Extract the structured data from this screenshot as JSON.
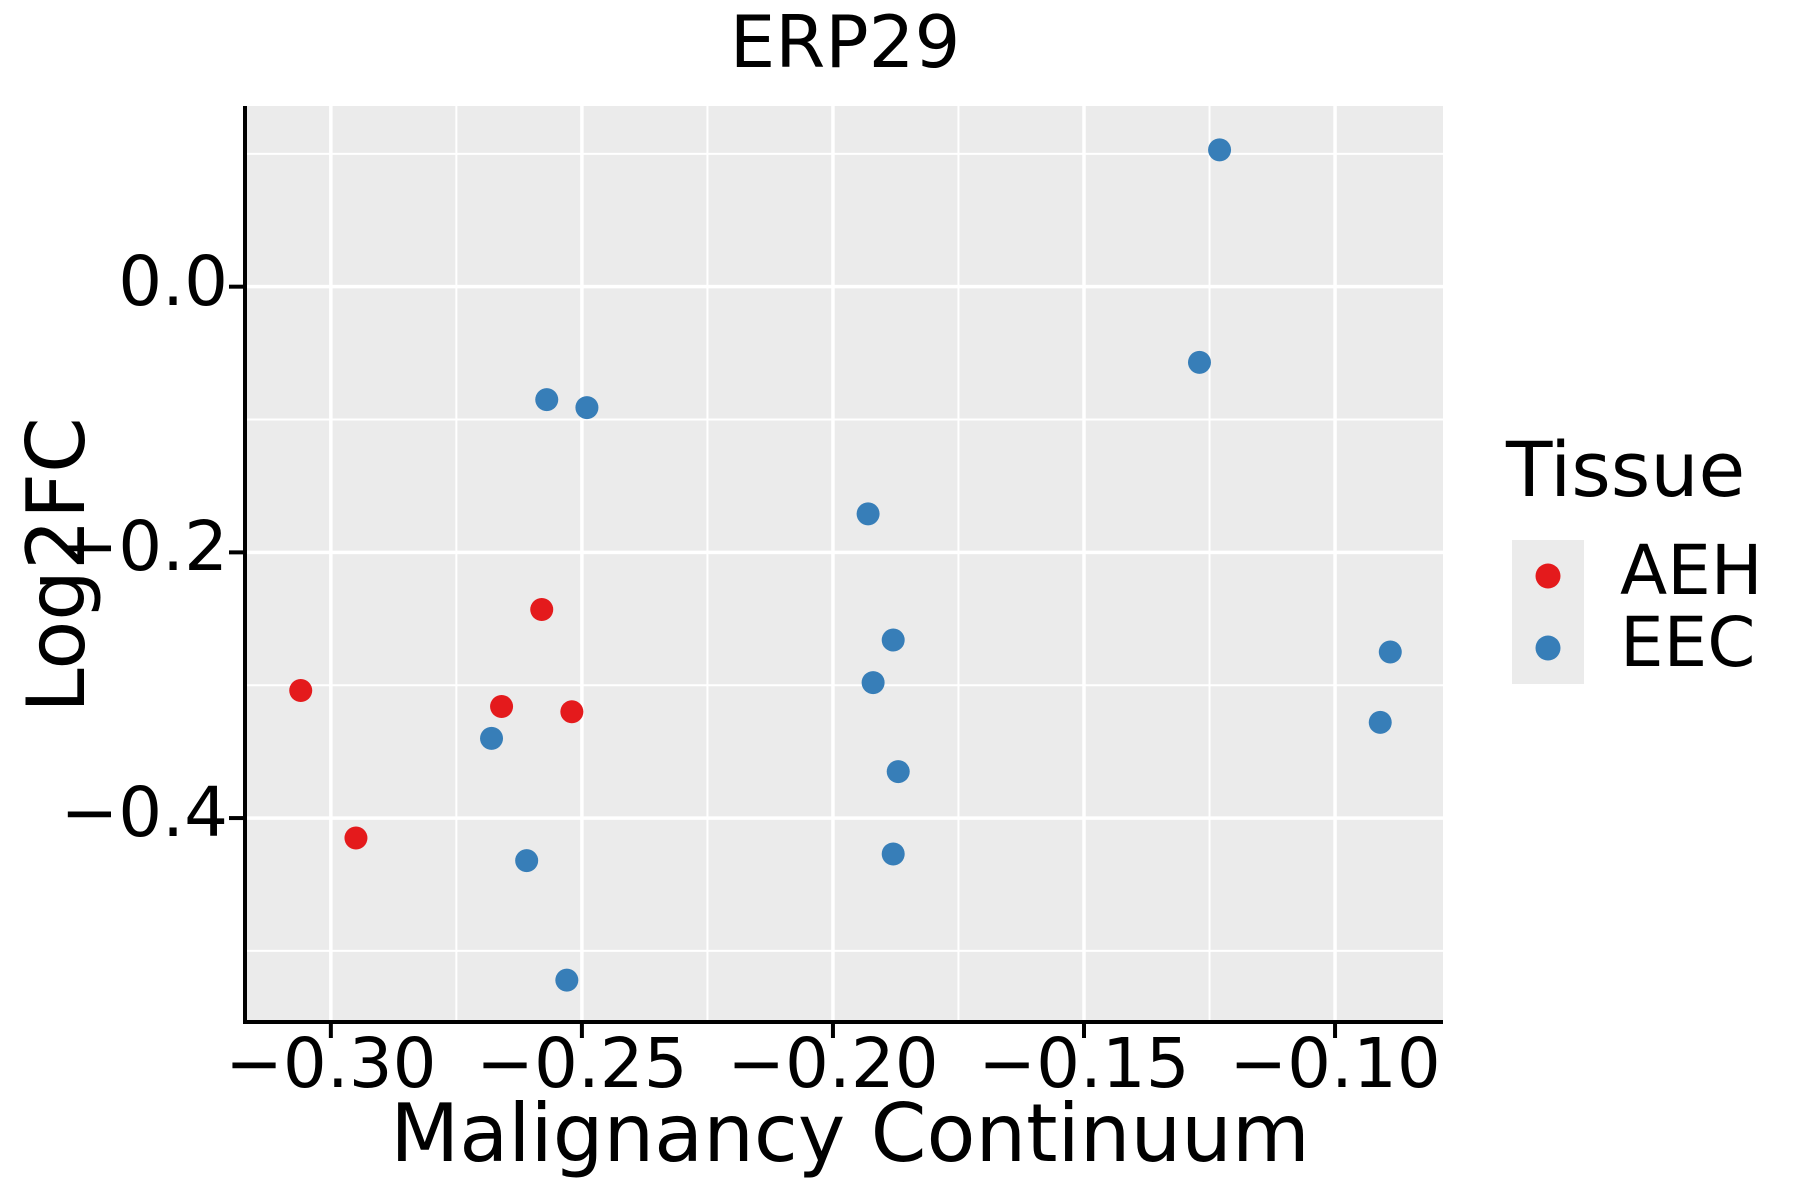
{
  "title": "ERP29",
  "colors": {
    "background": "#FFFFFF",
    "panel_bg": "#EBEBEB",
    "grid": "#FFFFFF",
    "axis": "#000000",
    "text": "#000000",
    "aeh_red": "#E41A1C",
    "eec_blue": "#377EB8"
  },
  "chart_data": {
    "type": "scatter",
    "title": "ERP29",
    "xlabel": "Malignancy Continuum",
    "ylabel": "Log2FC",
    "xlim": [
      -0.3167,
      -0.0785
    ],
    "ylim": [
      -0.552,
      0.136
    ],
    "grid": true,
    "x_ticks": {
      "values": [
        -0.3,
        -0.25,
        -0.2,
        -0.15,
        -0.1
      ],
      "labels": [
        "−0.30",
        "−0.25",
        "−0.20",
        "−0.15",
        "−0.10"
      ],
      "minor": [
        -0.275,
        -0.225,
        -0.175,
        -0.125
      ]
    },
    "y_ticks": {
      "values": [
        0.0,
        -0.2,
        -0.4
      ],
      "labels": [
        "0.0",
        "−0.2",
        "−0.4"
      ],
      "minor": [
        0.1,
        -0.1,
        -0.3,
        -0.5
      ]
    },
    "legend": {
      "title": "Tissue",
      "position": "right",
      "items": [
        {
          "label": "AEH",
          "color": "#E41A1C"
        },
        {
          "label": "EEC",
          "color": "#377EB8"
        }
      ]
    },
    "series": [
      {
        "name": "AEH",
        "color": "#E41A1C",
        "points": [
          [
            -0.306,
            -0.304
          ],
          [
            -0.295,
            -0.415
          ],
          [
            -0.266,
            -0.316
          ],
          [
            -0.258,
            -0.243
          ],
          [
            -0.252,
            -0.32
          ]
        ]
      },
      {
        "name": "EEC",
        "color": "#377EB8",
        "points": [
          [
            -0.268,
            -0.34
          ],
          [
            -0.261,
            -0.432
          ],
          [
            -0.257,
            -0.085
          ],
          [
            -0.253,
            -0.522
          ],
          [
            -0.249,
            -0.091
          ],
          [
            -0.193,
            -0.171
          ],
          [
            -0.192,
            -0.298
          ],
          [
            -0.188,
            -0.266
          ],
          [
            -0.188,
            -0.427
          ],
          [
            -0.187,
            -0.365
          ],
          [
            -0.127,
            -0.057
          ],
          [
            -0.123,
            0.103
          ],
          [
            -0.091,
            -0.328
          ],
          [
            -0.089,
            -0.275
          ]
        ]
      }
    ]
  }
}
